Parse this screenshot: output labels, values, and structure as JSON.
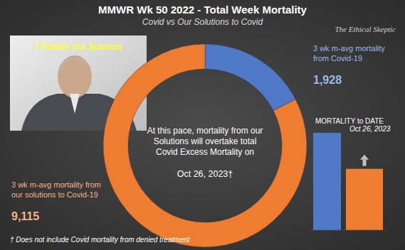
{
  "header": {
    "title": "MMWR Wk 50 2022 - Total Week Mortality",
    "subtitle": "Covid vs Our Solutions to Covid",
    "credit": "The Ethical Skeptic"
  },
  "photo_caption": "I Follow the $cience",
  "footnote": "† Does not include Covid mortality from denied treatment",
  "chart_data": [
    {
      "type": "donut",
      "categories": [
        "3 wk m-avg mortality from Covid-19",
        "3 wk m-avg mortality from our solutions to Covid-19"
      ],
      "values": [
        1928,
        9115
      ],
      "value_labels": [
        "1,928",
        "9,115"
      ],
      "colors": [
        "#5079c8",
        "#ee7d31"
      ],
      "data_labels": true,
      "annotations": [
        "At this pace, mortality from our",
        "Solutions will overtake total",
        "Covid Excess Mortality on",
        "Oct 26, 2023†"
      ]
    },
    {
      "type": "bar",
      "title": "MORTALITY to DATE",
      "subtitle": "Oct 26, 2023",
      "categories": [
        null,
        null
      ],
      "values": [
        100,
        63
      ],
      "colors": [
        "#5079c8",
        "#ee7d31"
      ],
      "ylim": [
        0,
        100
      ],
      "tick_labels": false
    }
  ]
}
